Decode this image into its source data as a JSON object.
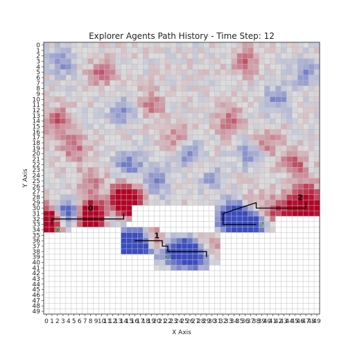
{
  "chart_data": {
    "type": "heatmap",
    "title": "Explorer Agents Path History - Time Step: 12",
    "xlabel": "X Axis",
    "ylabel": "Y Axis",
    "grid": "on",
    "colormap": "coolwarm",
    "x_ticks": [
      "0",
      "1",
      "2",
      "3",
      "4",
      "5",
      "6",
      "7",
      "8",
      "9",
      "10",
      "11",
      "12",
      "13",
      "14",
      "15",
      "16",
      "17",
      "18",
      "19",
      "20",
      "21",
      "22",
      "23",
      "24",
      "25",
      "26",
      "27",
      "28",
      "29",
      "30",
      "31",
      "32",
      "33",
      "34",
      "35",
      "36",
      "37",
      "38",
      "39",
      "40",
      "41",
      "42",
      "43",
      "44",
      "45",
      "46",
      "47",
      "48",
      "49"
    ],
    "y_ticks": [
      "0",
      "1",
      "2",
      "3",
      "4",
      "5",
      "6",
      "7",
      "8",
      "9",
      "10",
      "11",
      "12",
      "13",
      "14",
      "15",
      "16",
      "17",
      "18",
      "19",
      "20",
      "21",
      "22",
      "23",
      "24",
      "25",
      "26",
      "27",
      "28",
      "29",
      "30",
      "31",
      "32",
      "33",
      "34",
      "35",
      "36",
      "37",
      "38",
      "39",
      "40",
      "41",
      "42",
      "43",
      "44",
      "45",
      "46",
      "47",
      "48",
      "49"
    ],
    "explored_region": [
      {
        "x0": 0,
        "x1": 49,
        "y0": 0,
        "y1": 29
      },
      {
        "x0": 0,
        "x1": 4,
        "y0": 30,
        "y1": 34
      },
      {
        "x0": 5,
        "x1": 14,
        "y0": 30,
        "y1": 33
      },
      {
        "x0": 14,
        "x1": 15,
        "y0": 27,
        "y1": 32
      },
      {
        "x0": 31,
        "x1": 41,
        "y0": 29,
        "y1": 34
      },
      {
        "x0": 41,
        "x1": 49,
        "y0": 29,
        "y1": 31
      },
      {
        "x0": 14,
        "x1": 20,
        "y0": 34,
        "y1": 38
      },
      {
        "x0": 20,
        "x1": 31,
        "y0": 35,
        "y1": 40
      },
      {
        "x0": 20,
        "x1": 29,
        "y0": 40,
        "y1": 41
      }
    ],
    "hot_spots": [
      {
        "x": 0,
        "y": 32,
        "v": 1.0
      },
      {
        "x": 1,
        "y": 31,
        "v": 0.9
      },
      {
        "x": 1,
        "y": 33,
        "v": 0.85
      },
      {
        "x": 7,
        "y": 31,
        "v": 0.95
      },
      {
        "x": 8,
        "y": 32,
        "v": 0.95
      },
      {
        "x": 9,
        "y": 31,
        "v": 0.8
      },
      {
        "x": 14,
        "y": 28,
        "v": 1.0
      },
      {
        "x": 15,
        "y": 29,
        "v": 0.9
      },
      {
        "x": 14,
        "y": 30,
        "v": 0.85
      },
      {
        "x": 44,
        "y": 30,
        "v": 0.7
      },
      {
        "x": 47,
        "y": 30,
        "v": 0.8
      },
      {
        "x": 49,
        "y": 30,
        "v": 0.75
      },
      {
        "x": 37,
        "y": 30,
        "v": 0.6
      },
      {
        "x": 41,
        "y": 31,
        "v": 0.55
      },
      {
        "x": 20,
        "y": 36,
        "v": 0.6
      },
      {
        "x": 30,
        "y": 36,
        "v": 0.5
      },
      {
        "x": 2,
        "y": 14,
        "v": 0.6
      },
      {
        "x": 5,
        "y": 19,
        "v": 0.55
      },
      {
        "x": 10,
        "y": 5,
        "v": 0.5
      },
      {
        "x": 28,
        "y": 23,
        "v": 0.6
      },
      {
        "x": 33,
        "y": 14,
        "v": 0.55
      },
      {
        "x": 36,
        "y": 3,
        "v": 0.5
      },
      {
        "x": 45,
        "y": 22,
        "v": 0.6
      },
      {
        "x": 47,
        "y": 27,
        "v": 0.55
      },
      {
        "x": 19,
        "y": 11,
        "v": 0.5
      },
      {
        "x": 24,
        "y": 17,
        "v": 0.45
      },
      {
        "x": 40,
        "y": 18,
        "v": 0.5
      },
      {
        "x": 8,
        "y": 25,
        "v": 0.5
      }
    ],
    "cold_spots": [
      {
        "x": 1,
        "y": 31,
        "v": -0.7
      },
      {
        "x": 3,
        "y": 31,
        "v": -0.8
      },
      {
        "x": 5,
        "y": 31,
        "v": -0.8
      },
      {
        "x": 12,
        "y": 31,
        "v": -0.7
      },
      {
        "x": 16,
        "y": 36,
        "v": -1.0
      },
      {
        "x": 15,
        "y": 37,
        "v": -0.95
      },
      {
        "x": 17,
        "y": 38,
        "v": -0.9
      },
      {
        "x": 25,
        "y": 38,
        "v": -0.9
      },
      {
        "x": 27,
        "y": 39,
        "v": -0.95
      },
      {
        "x": 23,
        "y": 38,
        "v": -0.85
      },
      {
        "x": 34,
        "y": 31,
        "v": -0.95
      },
      {
        "x": 36,
        "y": 32,
        "v": -1.0
      },
      {
        "x": 33,
        "y": 33,
        "v": -0.9
      },
      {
        "x": 38,
        "y": 33,
        "v": -0.8
      },
      {
        "x": 26,
        "y": 20,
        "v": -0.7
      },
      {
        "x": 29,
        "y": 24,
        "v": -0.7
      },
      {
        "x": 15,
        "y": 22,
        "v": -0.6
      },
      {
        "x": 20,
        "y": 25,
        "v": -0.55
      },
      {
        "x": 42,
        "y": 10,
        "v": -0.55
      },
      {
        "x": 3,
        "y": 3,
        "v": -0.5
      },
      {
        "x": 14,
        "y": 12,
        "v": -0.5
      },
      {
        "x": 37,
        "y": 20,
        "v": -0.5
      },
      {
        "x": 47,
        "y": 5,
        "v": -0.5
      }
    ],
    "series": [
      {
        "name": "0",
        "path": [
          [
            1,
            33
          ],
          [
            1,
            32
          ],
          [
            14,
            32
          ],
          [
            14,
            31
          ]
        ],
        "start_label": [
          8,
          30
        ],
        "end_label": [
          2,
          34
        ]
      },
      {
        "name": "1",
        "path": [
          [
            16,
            36
          ],
          [
            21,
            36
          ],
          [
            21,
            37
          ],
          [
            22,
            37
          ],
          [
            22,
            38
          ],
          [
            29,
            38
          ],
          [
            29,
            39
          ]
        ],
        "start_label": [
          20,
          35
        ],
        "end_label": [
          22,
          39
        ]
      },
      {
        "name": "2",
        "path": [
          [
            47,
            29
          ],
          [
            47,
            30
          ],
          [
            38,
            30
          ],
          [
            38,
            29
          ],
          [
            32,
            31
          ],
          [
            32,
            33
          ],
          [
            38,
            33
          ]
        ],
        "start_label": [
          46,
          28
        ],
        "end_label": [
          39,
          33
        ]
      }
    ]
  }
}
